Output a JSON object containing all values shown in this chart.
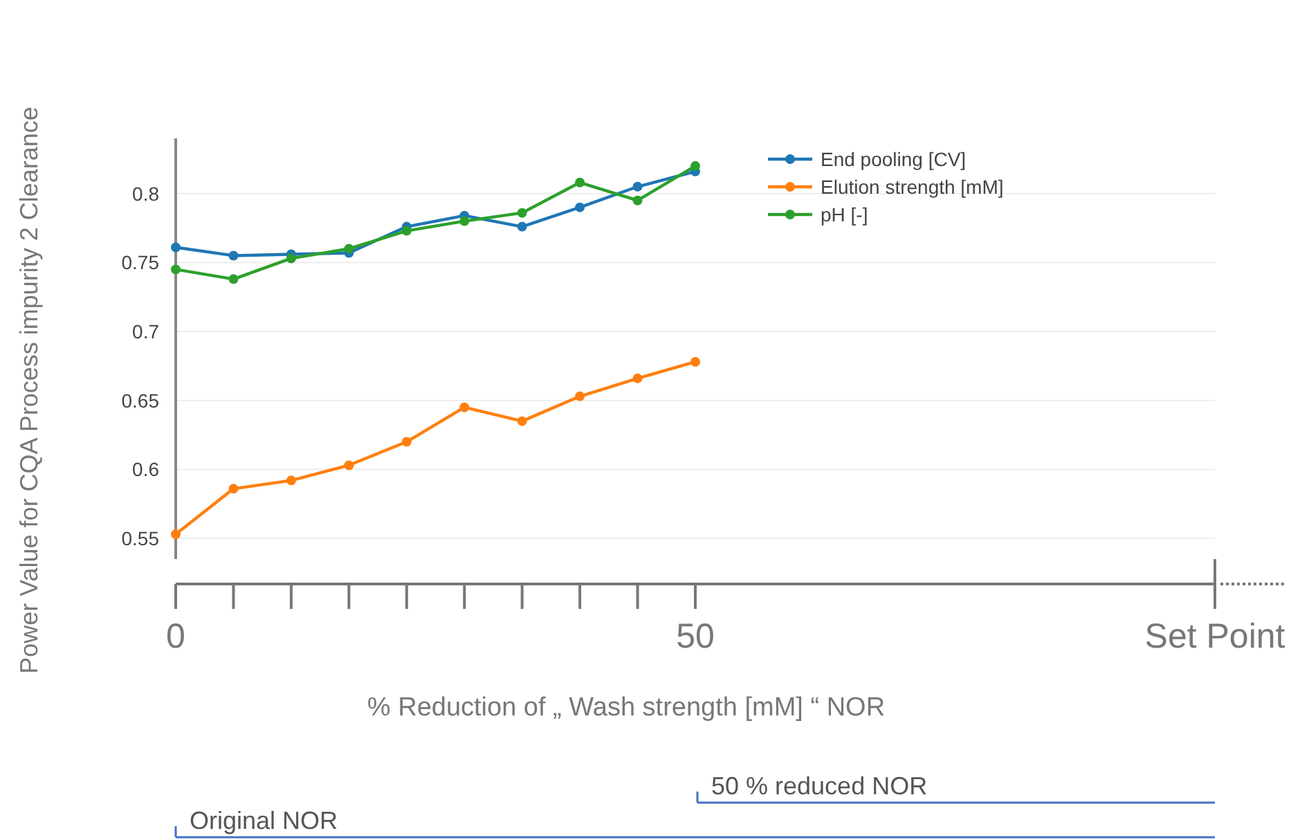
{
  "chart_data": {
    "type": "line",
    "ylabel": "Power Value for CQA Process impurity 2 Clearance",
    "xlabel": "% Reduction of „ Wash strength [mM] “ NOR",
    "x": [
      0,
      5.556,
      11.111,
      16.667,
      22.222,
      27.778,
      33.333,
      38.889,
      44.444,
      50
    ],
    "series": [
      {
        "name": "End pooling [CV]",
        "color": "#1f77b4",
        "values": [
          0.761,
          0.755,
          0.756,
          0.757,
          0.776,
          0.784,
          0.776,
          0.79,
          0.805,
          0.816
        ]
      },
      {
        "name": "Elution strength [mM]",
        "color": "#ff7f0e",
        "values": [
          0.553,
          0.586,
          0.592,
          0.603,
          0.62,
          0.645,
          0.635,
          0.653,
          0.666,
          0.678
        ]
      },
      {
        "name": "pH [-]",
        "color": "#2ca02c",
        "values": [
          0.745,
          0.738,
          0.753,
          0.76,
          0.773,
          0.78,
          0.786,
          0.808,
          0.795,
          0.82
        ]
      }
    ],
    "xlim": [
      0,
      100
    ],
    "xticks": [
      0,
      50,
      {
        "value": 100,
        "label": "Set Point"
      }
    ],
    "ylim": [
      0.535,
      0.84
    ],
    "yticks": [
      0.55,
      0.6,
      0.65,
      0.7,
      0.75,
      0.8
    ],
    "annotations": [
      "50 % reduced NOR",
      "Original NOR"
    ],
    "grid": "y",
    "legend": "top right",
    "marker": "circle",
    "line_style": "solid"
  }
}
